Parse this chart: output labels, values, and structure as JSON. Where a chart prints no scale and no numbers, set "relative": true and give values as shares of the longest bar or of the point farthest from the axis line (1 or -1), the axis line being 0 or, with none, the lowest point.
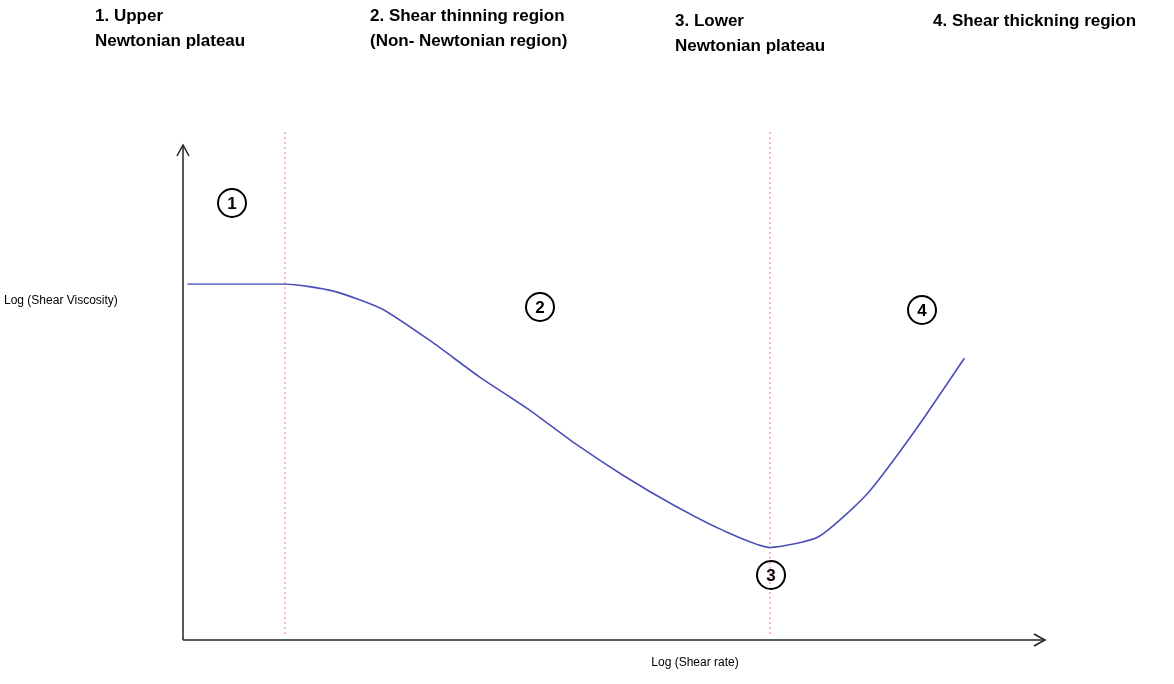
{
  "chart_data": {
    "type": "line",
    "relative": true,
    "xlabel": "Log (Shear rate)",
    "ylabel": "Log (Shear Viscosity)",
    "categories": [
      null,
      null,
      null,
      null,
      null,
      null,
      null,
      null,
      null,
      null,
      null,
      null,
      null,
      null,
      null,
      null,
      null
    ],
    "series": [
      {
        "color": "#4b4fb8",
        "values": [
          1,
          1,
          1,
          0.98,
          0.93,
          0.84,
          0.74,
          0.65,
          0.55,
          0.46,
          0.38,
          0.31,
          0.26,
          0.29,
          0.41,
          0.59,
          0.79
        ]
      }
    ],
    "marker": "none",
    "grid": false,
    "annotations": [
      "1. Upper\nNewtonian plateau",
      "2. Shear thinning region\n(Non- Newtonian region)",
      "3. Lower\nNewtonian plateau",
      "4. Shear thickning region",
      "1",
      "2",
      "3",
      "4"
    ]
  }
}
